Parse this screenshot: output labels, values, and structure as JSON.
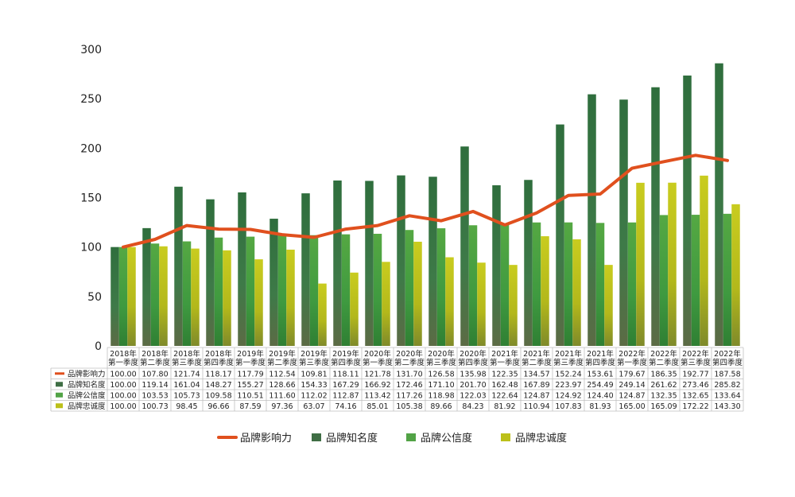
{
  "chart_data": {
    "type": "bar",
    "categories": [
      [
        "2018年",
        "第一季度"
      ],
      [
        "2018年",
        "第二季度"
      ],
      [
        "2018年",
        "第三季度"
      ],
      [
        "2018年",
        "第四季度"
      ],
      [
        "2019年",
        "第一季度"
      ],
      [
        "2019年",
        "第二季度"
      ],
      [
        "2019年",
        "第三季度"
      ],
      [
        "2019年",
        "第四季度"
      ],
      [
        "2020年",
        "第一季度"
      ],
      [
        "2020年",
        "第二季度"
      ],
      [
        "2020年",
        "第三季度"
      ],
      [
        "2020年",
        "第四季度"
      ],
      [
        "2021年",
        "第一季度"
      ],
      [
        "2021年",
        "第二季度"
      ],
      [
        "2021年",
        "第三季度"
      ],
      [
        "2021年",
        "第四季度"
      ],
      [
        "2022年",
        "第一季度"
      ],
      [
        "2022年",
        "第二季度"
      ],
      [
        "2022年",
        "第三季度"
      ],
      [
        "2022年",
        "第四季度"
      ]
    ],
    "ylim": [
      0,
      300
    ],
    "yticks": [
      0,
      50,
      100,
      150,
      200,
      250,
      300
    ],
    "legend_position": "bottom",
    "data_table": true,
    "series": [
      {
        "name": "品牌影响力",
        "type": "line",
        "color": "#e0501e",
        "values": [
          100.0,
          107.8,
          121.74,
          118.17,
          117.79,
          112.54,
          109.81,
          118.11,
          121.78,
          131.7,
          126.58,
          135.98,
          122.35,
          134.57,
          152.24,
          153.61,
          179.67,
          186.35,
          192.77,
          187.58
        ]
      },
      {
        "name": "品牌知名度",
        "type": "bar",
        "color": "#3f6e45",
        "values": [
          100.0,
          119.14,
          161.04,
          148.27,
          155.27,
          128.66,
          154.33,
          167.29,
          166.92,
          172.46,
          171.1,
          201.7,
          162.48,
          167.89,
          223.97,
          254.49,
          249.14,
          261.62,
          273.46,
          285.82
        ]
      },
      {
        "name": "品牌公信度",
        "type": "bar",
        "color": "#52a346",
        "values": [
          100.0,
          103.53,
          105.73,
          109.58,
          110.51,
          111.6,
          112.02,
          112.87,
          113.42,
          117.26,
          118.98,
          122.03,
          122.64,
          124.87,
          124.92,
          124.4,
          124.87,
          132.35,
          132.65,
          133.64
        ]
      },
      {
        "name": "品牌忠诚度",
        "type": "bar",
        "color": "#bcc01a",
        "values": [
          100.0,
          100.73,
          98.45,
          96.66,
          87.59,
          97.36,
          63.07,
          74.16,
          85.01,
          105.38,
          89.66,
          84.23,
          81.92,
          110.94,
          107.83,
          81.93,
          165.0,
          165.09,
          172.22,
          143.3
        ]
      }
    ]
  }
}
